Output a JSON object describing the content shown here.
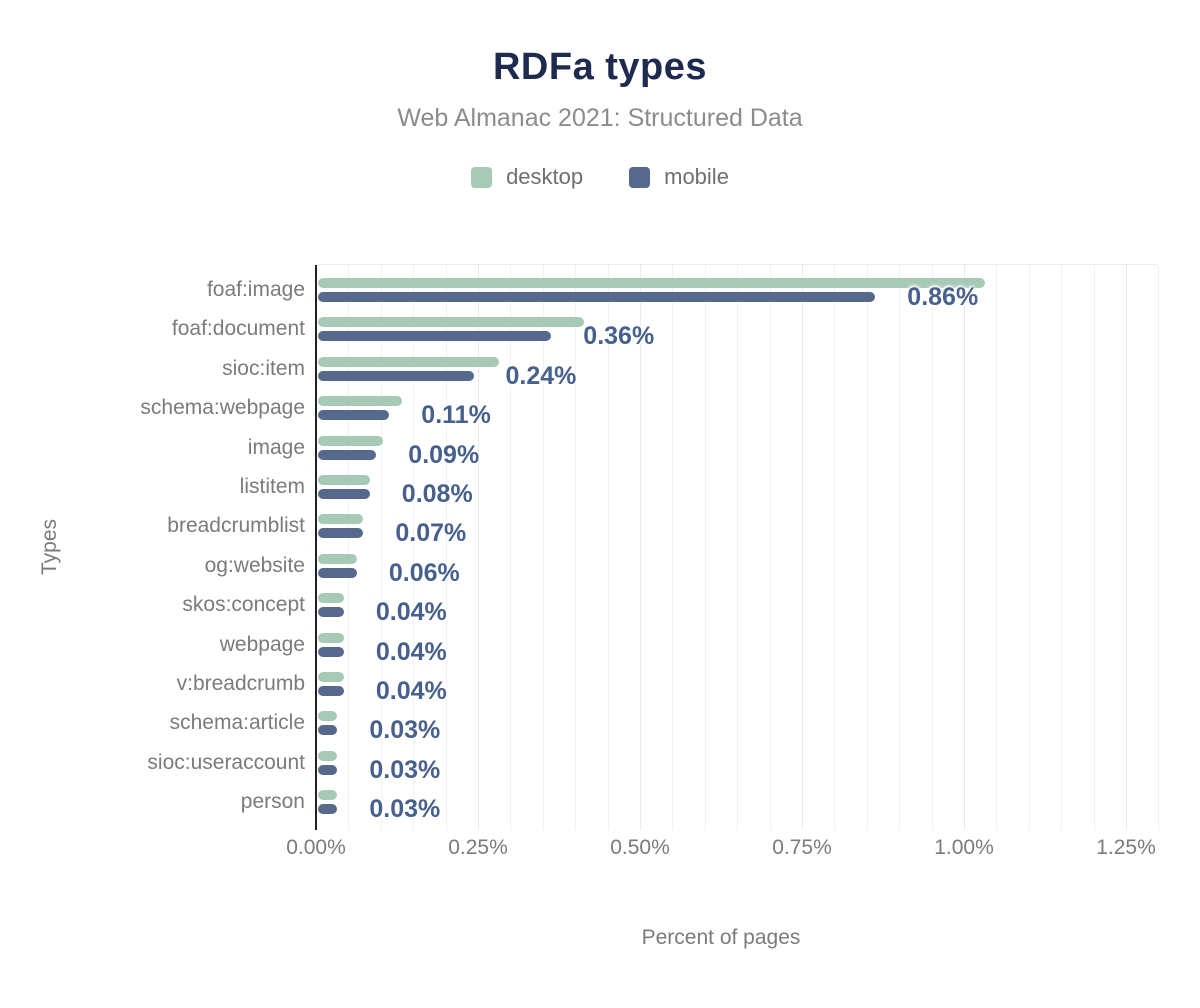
{
  "header": {
    "title": "RDFa types",
    "subtitle": "Web Almanac 2021: Structured Data"
  },
  "axes": {
    "x_title": "Percent of pages",
    "y_title": "Types"
  },
  "colors": {
    "desktop": "#a6cab6",
    "mobile": "#56688c",
    "title": "#1e2b4f",
    "value_label": "#47608c",
    "axis_text": "#7b7b7b"
  },
  "chart_data": {
    "type": "bar",
    "orientation": "horizontal",
    "title": "RDFa types",
    "subtitle": "Web Almanac 2021: Structured Data",
    "xlabel": "Percent of pages",
    "ylabel": "Types",
    "xlim": [
      0,
      1.25
    ],
    "grid": "vertical minor every 0.05%, major every 0.25%",
    "legend_position": "top",
    "x_ticks": [
      {
        "value": 0.0,
        "label": "0.00%"
      },
      {
        "value": 0.25,
        "label": "0.25%"
      },
      {
        "value": 0.5,
        "label": "0.50%"
      },
      {
        "value": 0.75,
        "label": "0.75%"
      },
      {
        "value": 1.0,
        "label": "1.00%"
      },
      {
        "value": 1.25,
        "label": "1.25%"
      }
    ],
    "categories": [
      "foaf:image",
      "foaf:document",
      "sioc:item",
      "schema:webpage",
      "image",
      "listitem",
      "breadcrumblist",
      "og:website",
      "skos:concept",
      "webpage",
      "v:breadcrumb",
      "schema:article",
      "sioc:useraccount",
      "person"
    ],
    "series": [
      {
        "name": "desktop",
        "color": "#a6cab6",
        "values": [
          1.03,
          0.41,
          0.28,
          0.13,
          0.1,
          0.08,
          0.07,
          0.06,
          0.04,
          0.04,
          0.04,
          0.03,
          0.03,
          0.03
        ]
      },
      {
        "name": "mobile",
        "color": "#56688c",
        "values": [
          0.86,
          0.36,
          0.24,
          0.11,
          0.09,
          0.08,
          0.07,
          0.06,
          0.04,
          0.04,
          0.04,
          0.03,
          0.03,
          0.03
        ]
      }
    ],
    "data_labels": [
      "0.86%",
      "0.36%",
      "0.24%",
      "0.11%",
      "0.09%",
      "0.08%",
      "0.07%",
      "0.06%",
      "0.04%",
      "0.04%",
      "0.04%",
      "0.03%",
      "0.03%",
      "0.03%"
    ],
    "data_labels_series": "mobile"
  }
}
